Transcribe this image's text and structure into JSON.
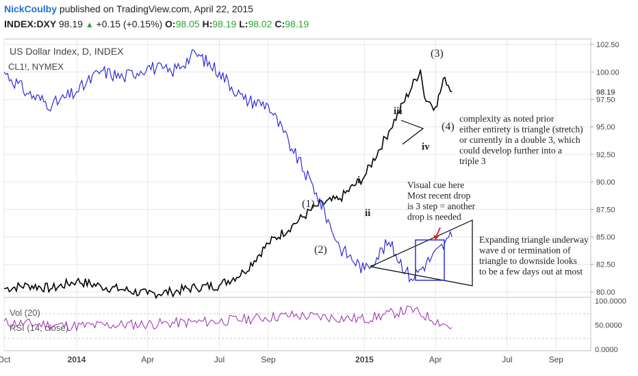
{
  "header": {
    "author": "NickCoulby",
    "published_text": "published on TradingView.com, April 22, 2015",
    "symbol": "INDEX:DXY",
    "last": "98.19",
    "change": "+0.15 (+0.15%)",
    "o_label": "O:",
    "o_value": "98.05",
    "h_label": "H:",
    "h_value": "98.19",
    "l_label": "L:",
    "l_value": "98.02",
    "c_label": "C:",
    "c_value": "98.19"
  },
  "legend": {
    "main_title": "US Dollar Index, D, INDEX",
    "overlay_title": "CL1!, NYMEX",
    "vol_label": "Vol (20)",
    "rsi_label": "RSI (14, close)"
  },
  "colors": {
    "dxy": "#000000",
    "cl1": "#2d2dd6",
    "rsi": "#9c27b0",
    "grid": "#e6e6e6",
    "annotation": "#222222",
    "arrow": "#e02020",
    "box": "#2d2dd6"
  },
  "annotations": {
    "wave3": "(3)",
    "wave1": "(1)",
    "wave2": "(2)",
    "wave4": "(4)",
    "sub_iii": "iii",
    "sub_iv": "iv",
    "sub_i": "i",
    "sub_ii": "ii",
    "note_complexity": [
      "complexity as noted prior",
      "either entirety is triangle (stretch)",
      "or currently in a double 3, which",
      "could develop further into a",
      "triple 3"
    ],
    "note_visual": [
      "Visual cue here",
      "Most recent drop",
      "is 3 step = another",
      "drop is needed"
    ],
    "note_triangle": [
      "Expanding triangle underway",
      "wave d or termination of",
      "triangle to downside looks",
      "to be a few days out at most"
    ]
  },
  "chart_data": {
    "type": "line",
    "title": "US Dollar Index, D, INDEX",
    "x_ticks": [
      "Oct",
      "2014",
      "Apr",
      "Jul",
      "Sep",
      "2015",
      "Apr",
      "Jul",
      "Sep"
    ],
    "y_ticks": [
      "102.50",
      "100.00",
      "97.50",
      "95.00",
      "92.50",
      "90.00",
      "87.50",
      "85.00",
      "82.50",
      "80.00"
    ],
    "ylim": [
      79.5,
      103
    ],
    "last_price_label": "98.19",
    "series": [
      {
        "name": "US Dollar Index",
        "x": [
          "2013-10",
          "2013-11",
          "2013-12",
          "2014-01",
          "2014-02",
          "2014-03",
          "2014-04",
          "2014-05",
          "2014-06",
          "2014-07",
          "2014-08",
          "2014-09",
          "2014-10",
          "2014-11",
          "2014-12",
          "2015-01",
          "2015-02",
          "2015-03-13",
          "2015-03-18",
          "2015-04-01",
          "2015-04-13",
          "2015-04-22"
        ],
        "values": [
          80.3,
          80.6,
          80.3,
          81.0,
          80.5,
          80.2,
          79.8,
          80.0,
          80.4,
          80.6,
          81.8,
          84.4,
          86.0,
          87.8,
          88.5,
          90.5,
          94.6,
          100.2,
          97.7,
          96.8,
          99.5,
          98.19
        ]
      },
      {
        "name": "CL1!",
        "x": [
          "2013-10",
          "2013-11",
          "2013-12",
          "2014-01",
          "2014-02",
          "2014-03",
          "2014-04",
          "2014-05",
          "2014-06",
          "2014-07",
          "2014-08",
          "2014-09",
          "2014-10",
          "2014-11",
          "2014-12",
          "2015-01",
          "2015-02",
          "2015-03",
          "2015-04-22"
        ],
        "values": [
          100.0,
          98.0,
          97.0,
          98.2,
          100.1,
          99.5,
          100.5,
          100.0,
          101.7,
          100.0,
          97.5,
          97.0,
          93.0,
          89.0,
          84.0,
          82.0,
          84.5,
          81.2,
          85.0
        ]
      }
    ],
    "indicators": {
      "vol_yticks": [
        "100.0000",
        "50.0000",
        "0.0000"
      ],
      "rsi": {
        "name": "RSI (14, close)",
        "x": [
          "2013-10",
          "2014-01",
          "2014-04",
          "2014-07",
          "2014-10",
          "2015-01",
          "2015-03",
          "2015-04-22"
        ],
        "values": [
          55,
          48,
          52,
          58,
          70,
          62,
          82,
          45
        ]
      }
    }
  }
}
